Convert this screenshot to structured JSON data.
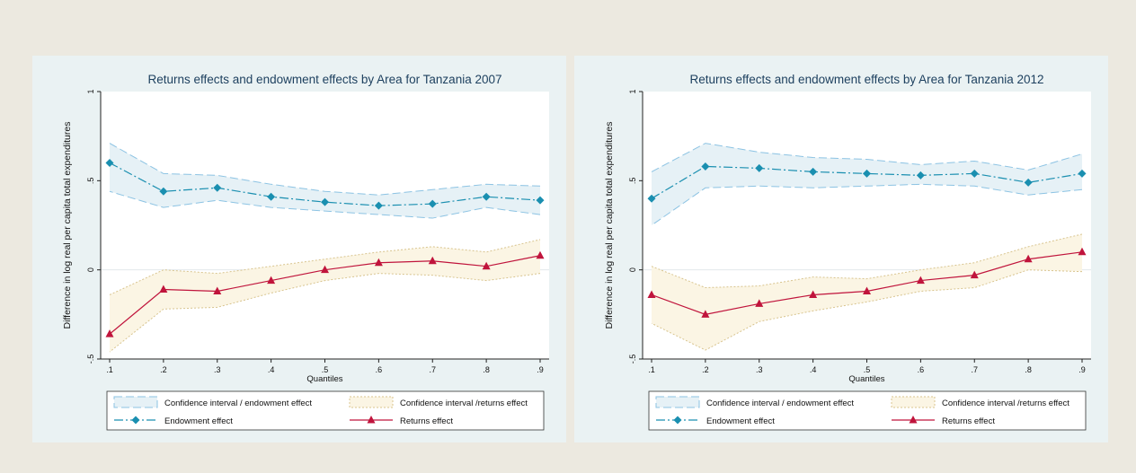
{
  "chart_data": [
    {
      "type": "line",
      "title": "Returns effects and endowment effects by Area for Tanzania 2007",
      "xlabel": "Quantiles",
      "ylabel": "Difference in log real per capita total expenditures",
      "x": [
        0.1,
        0.2,
        0.3,
        0.4,
        0.5,
        0.6,
        0.7,
        0.8,
        0.9
      ],
      "x_ticks": [
        ".1",
        ".2",
        ".3",
        ".4",
        ".5",
        ".6",
        ".7",
        ".8",
        ".9"
      ],
      "y_ticks": [
        {
          "v": -0.5,
          "label": "-.5"
        },
        {
          "v": 0,
          "label": "0"
        },
        {
          "v": 0.5,
          "label": ".5"
        },
        {
          "v": 1,
          "label": "1"
        }
      ],
      "xlim": [
        0.1,
        0.9
      ],
      "ylim": [
        -0.5,
        1.0
      ],
      "series": [
        {
          "name": "Endowment effect",
          "values": [
            0.6,
            0.44,
            0.46,
            0.41,
            0.38,
            0.36,
            0.37,
            0.41,
            0.39
          ],
          "ci_upper": [
            0.71,
            0.54,
            0.53,
            0.48,
            0.44,
            0.42,
            0.45,
            0.48,
            0.47
          ],
          "ci_lower": [
            0.44,
            0.35,
            0.39,
            0.35,
            0.33,
            0.31,
            0.29,
            0.35,
            0.31
          ]
        },
        {
          "name": "Returns effect",
          "values": [
            -0.36,
            -0.11,
            -0.12,
            -0.06,
            0.0,
            0.04,
            0.05,
            0.02,
            0.08
          ],
          "ci_upper": [
            -0.14,
            0.0,
            -0.02,
            0.02,
            0.06,
            0.1,
            0.13,
            0.1,
            0.17
          ],
          "ci_lower": [
            -0.46,
            -0.22,
            -0.21,
            -0.13,
            -0.06,
            -0.02,
            -0.03,
            -0.06,
            -0.02
          ]
        }
      ],
      "legend": [
        {
          "label": "Confidence interval / endowment effect",
          "kind": "band-endow"
        },
        {
          "label": "Confidence interval /returns effect",
          "kind": "band-returns"
        },
        {
          "label": "Endowment effect",
          "kind": "line-endow"
        },
        {
          "label": "Returns effect",
          "kind": "line-returns"
        }
      ],
      "legend_position": "bottom",
      "grid": false
    },
    {
      "type": "line",
      "title": "Returns effects and endowment effects by Area for Tanzania 2012",
      "xlabel": "Quantiles",
      "ylabel": "Difference in log real per capita total expenditures",
      "x": [
        0.1,
        0.2,
        0.3,
        0.4,
        0.5,
        0.6,
        0.7,
        0.8,
        0.9
      ],
      "x_ticks": [
        ".1",
        ".2",
        ".3",
        ".4",
        ".5",
        ".6",
        ".7",
        ".8",
        ".9"
      ],
      "y_ticks": [
        {
          "v": -0.5,
          "label": "-.5"
        },
        {
          "v": 0,
          "label": "0"
        },
        {
          "v": 0.5,
          "label": ".5"
        },
        {
          "v": 1,
          "label": "1"
        }
      ],
      "xlim": [
        0.1,
        0.9
      ],
      "ylim": [
        -0.5,
        1.0
      ],
      "series": [
        {
          "name": "Endowment effect",
          "values": [
            0.4,
            0.58,
            0.57,
            0.55,
            0.54,
            0.53,
            0.54,
            0.49,
            0.54
          ],
          "ci_upper": [
            0.55,
            0.71,
            0.66,
            0.63,
            0.62,
            0.59,
            0.61,
            0.56,
            0.65
          ],
          "ci_lower": [
            0.25,
            0.46,
            0.47,
            0.46,
            0.47,
            0.48,
            0.47,
            0.42,
            0.45
          ]
        },
        {
          "name": "Returns effect",
          "values": [
            -0.14,
            -0.25,
            -0.19,
            -0.14,
            -0.12,
            -0.06,
            -0.03,
            0.06,
            0.1
          ],
          "ci_upper": [
            0.02,
            -0.1,
            -0.09,
            -0.04,
            -0.05,
            0.0,
            0.04,
            0.13,
            0.2
          ],
          "ci_lower": [
            -0.3,
            -0.45,
            -0.29,
            -0.23,
            -0.18,
            -0.12,
            -0.1,
            0.0,
            -0.01
          ]
        }
      ],
      "legend": [
        {
          "label": "Confidence interval / endowment effect",
          "kind": "band-endow"
        },
        {
          "label": "Confidence interval /returns effect",
          "kind": "band-returns"
        },
        {
          "label": "Endowment effect",
          "kind": "line-endow"
        },
        {
          "label": "Returns effect",
          "kind": "line-returns"
        }
      ],
      "legend_position": "bottom",
      "grid": false
    }
  ],
  "colors": {
    "endowment": "#1a8fb0",
    "endowment_band": "#e6f1f6",
    "endowment_band_edge": "#8cc3e3",
    "returns": "#c0143c",
    "returns_band": "#fbf5e4",
    "returns_band_edge": "#d8c48e",
    "panel_bg": "#eaf2f3",
    "plot_bg": "#ffffff",
    "title": "#1c3f5e"
  }
}
